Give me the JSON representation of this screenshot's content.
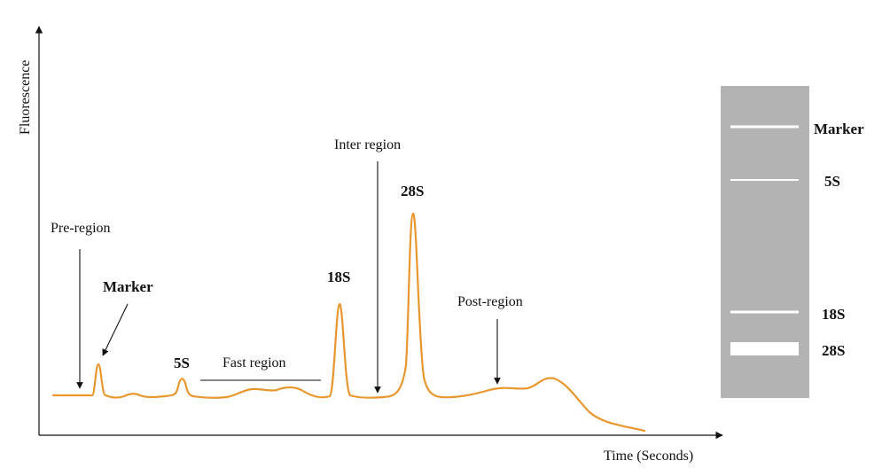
{
  "electropherogram": {
    "y_axis_label": "Fluorescence",
    "x_axis_label": "Time (Seconds)",
    "annotations": {
      "pre_region": "Pre-region",
      "marker": "Marker",
      "five_s": "5S",
      "fast_region": "Fast region",
      "eighteen_s": "18S",
      "inter_region": "Inter region",
      "twenty_eight_s": "28S",
      "post_region": "Post-region"
    },
    "trace_color": "#E8962E"
  },
  "gel": {
    "lane_color": "#B3B3B3",
    "band_color": "#FFFFFF",
    "bands": [
      {
        "label": "Marker"
      },
      {
        "label": "5S"
      },
      {
        "label": "18S"
      },
      {
        "label": "28S"
      }
    ]
  }
}
